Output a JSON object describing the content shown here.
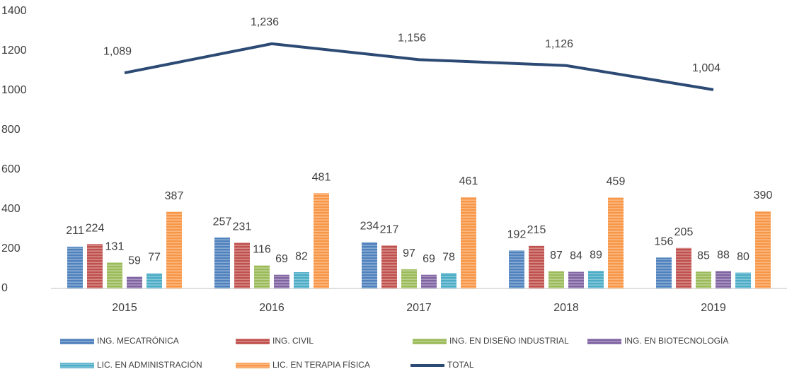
{
  "chart_data": {
    "type": "bar",
    "categories": [
      "2015",
      "2016",
      "2017",
      "2018",
      "2019"
    ],
    "series": [
      {
        "name": "ING. MECATRÓNICA",
        "color": "#4f81bd",
        "values": [
          211,
          257,
          234,
          192,
          156
        ]
      },
      {
        "name": "ING. CIVIL",
        "color": "#c0504d",
        "values": [
          224,
          231,
          217,
          215,
          205
        ]
      },
      {
        "name": "ING. EN DISEÑO INDUSTRIAL",
        "color": "#9bbb59",
        "values": [
          131,
          116,
          97,
          87,
          85
        ]
      },
      {
        "name": "ING. EN BIOTECNOLOGÍA",
        "color": "#8064a2",
        "values": [
          59,
          69,
          69,
          84,
          88
        ]
      },
      {
        "name": "LIC. EN ADMINISTRACIÓN",
        "color": "#4bacc6",
        "values": [
          77,
          82,
          78,
          89,
          80
        ]
      },
      {
        "name": "LIC. EN TERAPIA FÍSICA",
        "color": "#f79646",
        "values": [
          387,
          481,
          461,
          459,
          390
        ]
      },
      {
        "name": "TOTAL",
        "type": "line",
        "color": "#2c4a74",
        "values": [
          1089,
          1236,
          1156,
          1126,
          1004
        ],
        "value_labels": [
          "1,089",
          "1,236",
          "1,156",
          "1,126",
          "1,004"
        ]
      }
    ],
    "ylim": [
      0,
      1400
    ],
    "yticks": [
      0,
      200,
      400,
      600,
      800,
      1000,
      1200,
      1400
    ],
    "grid": false,
    "legend": "bottom"
  }
}
